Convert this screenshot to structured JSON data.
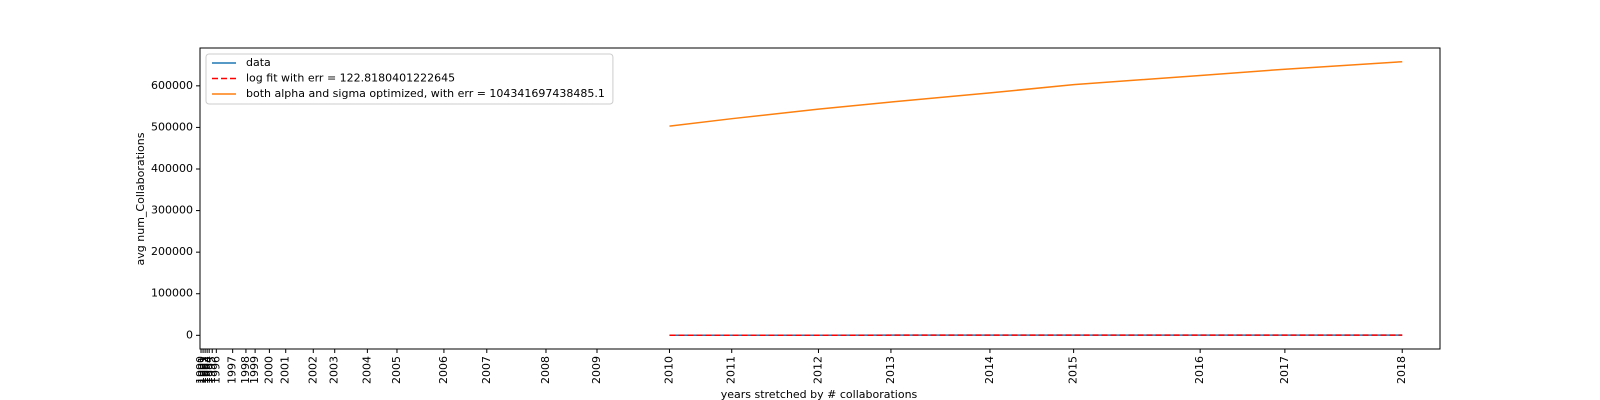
{
  "chart_data": {
    "type": "line",
    "xlabel": "years stretched by # collaborations",
    "ylabel": "avg num_Collaborations",
    "x": [
      459,
      520,
      605,
      676,
      773,
      855,
      979,
      1062,
      1177
    ],
    "series": [
      {
        "name": "data",
        "color": "#1f77b4",
        "linestyle": "solid",
        "values": [
          150,
          200,
          260,
          320,
          380,
          430,
          480,
          520,
          560
        ]
      },
      {
        "name": "log fit with err = 122.8180401222645",
        "color": "#ff0000",
        "linestyle": "dashed",
        "values": [
          160,
          220,
          270,
          320,
          370,
          420,
          470,
          510,
          550
        ]
      },
      {
        "name": "both alpha and sigma optimized, with err = 104341697438485.1",
        "color": "#ff7f0e",
        "linestyle": "solid",
        "values": [
          503000,
          521000,
          544000,
          561000,
          583000,
          603000,
          625000,
          640000,
          658000
        ]
      }
    ],
    "xlim": [
      -1,
      1214
    ],
    "ylim": [
      -32900,
      691000
    ],
    "yticks": [
      0,
      100000,
      200000,
      300000,
      400000,
      500000,
      600000
    ],
    "xticks": [
      {
        "value": 0,
        "label": "1990"
      },
      {
        "value": 2,
        "label": "1991"
      },
      {
        "value": 4,
        "label": "1992"
      },
      {
        "value": 6,
        "label": "1993"
      },
      {
        "value": 8,
        "label": "1994"
      },
      {
        "value": 11,
        "label": "1995"
      },
      {
        "value": 15,
        "label": "1996"
      },
      {
        "value": 31,
        "label": "1997"
      },
      {
        "value": 44,
        "label": "1998"
      },
      {
        "value": 53,
        "label": "1999"
      },
      {
        "value": 67,
        "label": "2000"
      },
      {
        "value": 83,
        "label": "2001"
      },
      {
        "value": 110,
        "label": "2002"
      },
      {
        "value": 131,
        "label": "2003"
      },
      {
        "value": 163,
        "label": "2004"
      },
      {
        "value": 192,
        "label": "2005"
      },
      {
        "value": 238,
        "label": "2006"
      },
      {
        "value": 280,
        "label": "2007"
      },
      {
        "value": 338,
        "label": "2008"
      },
      {
        "value": 388,
        "label": "2009"
      },
      {
        "value": 459,
        "label": "2010"
      },
      {
        "value": 520,
        "label": "2011"
      },
      {
        "value": 605,
        "label": "2012"
      },
      {
        "value": 676,
        "label": "2013"
      },
      {
        "value": 773,
        "label": "2014"
      },
      {
        "value": 855,
        "label": "2015"
      },
      {
        "value": 979,
        "label": "2016"
      },
      {
        "value": 1062,
        "label": "2017"
      },
      {
        "value": 1177,
        "label": "2018"
      }
    ],
    "legend": "upper left",
    "grid": false
  }
}
